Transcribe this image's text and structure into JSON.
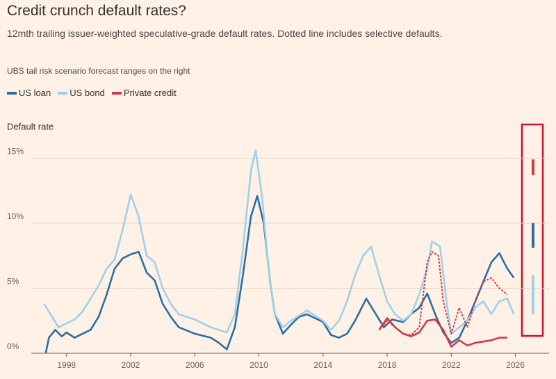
{
  "chart_data": {
    "type": "line",
    "title": "Credit crunch default rates?",
    "subtitle": "12mth trailing issuer-weighted speculative-grade default rates. Dotted line includes selective defaults.",
    "note": "UBS tail risk scenario forecast ranges on the right",
    "ylabel": "Default rate",
    "xlim": [
      1995.8,
      2028.1
    ],
    "xticks": [
      1998,
      2002,
      2006,
      2010,
      2014,
      2018,
      2022,
      2026
    ],
    "ylim": [
      0,
      17
    ],
    "yticks": [
      {
        "value": 0,
        "label": "0%"
      },
      {
        "value": 5,
        "label": "5%"
      },
      {
        "value": 10,
        "label": "10%"
      },
      {
        "value": 15,
        "label": "15%"
      }
    ],
    "grid": true,
    "series": [
      {
        "name": "US loan",
        "color": "#2a6ea6",
        "x": [
          1996.7,
          1996.9,
          1997.3,
          1997.7,
          1998,
          1998.5,
          1999,
          1999.5,
          2000,
          2000.5,
          2001,
          2001.5,
          2002,
          2002.5,
          2003,
          2003.5,
          2004,
          2004.5,
          2005,
          2006,
          2007,
          2007.5,
          2008,
          2008.5,
          2009,
          2009.5,
          2009.9,
          2010.3,
          2010.7,
          2011,
          2011.5,
          2012,
          2012.5,
          2013,
          2013.5,
          2014,
          2014.5,
          2015,
          2015.5,
          2016,
          2016.7,
          2017.3,
          2017.8,
          2018.3,
          2019,
          2019.5,
          2020,
          2020.5,
          2021,
          2021.5,
          2022,
          2022.5,
          2023,
          2023.5,
          2024,
          2024.5,
          2025,
          2025.5,
          2025.9
        ],
        "values": [
          0,
          1.2,
          1.8,
          1.3,
          1.6,
          1.2,
          1.5,
          1.8,
          2.8,
          4.5,
          6.5,
          7.3,
          7.6,
          7.8,
          6.2,
          5.6,
          3.8,
          2.8,
          2.0,
          1.5,
          1.2,
          0.8,
          0.3,
          2.0,
          6.0,
          10.5,
          12.1,
          10.0,
          5.5,
          3.0,
          1.5,
          2.2,
          2.8,
          3.0,
          2.7,
          2.4,
          1.4,
          1.2,
          1.5,
          2.5,
          4.2,
          3.0,
          2.0,
          2.6,
          2.4,
          3.0,
          3.5,
          4.6,
          3.0,
          1.6,
          0.8,
          1.2,
          2.5,
          4.0,
          5.5,
          7.0,
          7.7,
          6.5,
          5.8
        ],
        "forecast": [
          8.1,
          10.0
        ]
      },
      {
        "name": "US bond",
        "color": "#9fd0ea",
        "x": [
          1996.6,
          1997,
          1997.5,
          1998,
          1998.5,
          1999,
          1999.5,
          2000,
          2000.5,
          2001,
          2001.5,
          2002,
          2002.5,
          2003,
          2003.5,
          2004,
          2004.5,
          2005,
          2006,
          2007,
          2008,
          2008.5,
          2009,
          2009.5,
          2009.8,
          2010.2,
          2010.6,
          2011,
          2011.5,
          2012,
          2013,
          2014,
          2014.5,
          2015,
          2015.5,
          2016,
          2016.5,
          2017,
          2017.5,
          2018,
          2018.5,
          2019,
          2019.5,
          2020,
          2020.5,
          2020.8,
          2021.3,
          2021.7,
          2022,
          2022.5,
          2023,
          2023.5,
          2024,
          2024.5,
          2025,
          2025.5,
          2025.9
        ],
        "values": [
          3.8,
          3.0,
          2.0,
          2.3,
          2.6,
          3.2,
          4.2,
          5.2,
          6.5,
          7.2,
          9.5,
          12.2,
          10.5,
          7.5,
          7.0,
          5.0,
          3.8,
          3.0,
          2.6,
          2.0,
          1.6,
          3.0,
          8.0,
          14.0,
          15.6,
          12.0,
          6.5,
          3.0,
          2.0,
          2.5,
          3.3,
          2.5,
          1.8,
          2.5,
          4.0,
          6.0,
          7.5,
          8.2,
          6.0,
          4.0,
          3.0,
          2.5,
          3.0,
          4.5,
          6.5,
          8.6,
          8.2,
          4.0,
          1.5,
          2.0,
          2.5,
          3.5,
          4.0,
          3.0,
          4.0,
          4.2,
          3.0
        ],
        "forecast": [
          3.0,
          6.0
        ]
      },
      {
        "name": "Private credit",
        "color": "#cc3a4b",
        "x": [
          2017.5,
          2018,
          2018.5,
          2019,
          2019.5,
          2020,
          2020.5,
          2021,
          2021.5,
          2022,
          2022.5,
          2023,
          2023.5,
          2024,
          2024.5,
          2025,
          2025.5
        ],
        "values": [
          1.8,
          2.7,
          2.0,
          1.5,
          1.3,
          1.6,
          2.5,
          2.6,
          1.8,
          0.5,
          1.0,
          0.6,
          0.8,
          0.9,
          1.0,
          1.2,
          1.2
        ],
        "forecast": [
          13.7,
          14.9
        ]
      },
      {
        "color": "#cc3a4b",
        "dashed": true,
        "x": [
          2017.5,
          2018,
          2018.5,
          2019,
          2019.5,
          2020,
          2020.5,
          2020.8,
          2021.2,
          2021.5,
          2022,
          2022.5,
          2023,
          2023.5,
          2024,
          2024.5,
          2025,
          2025.5
        ],
        "values": [
          1.8,
          2.5,
          2.0,
          1.5,
          1.4,
          2.0,
          7.0,
          7.8,
          7.5,
          4.0,
          1.5,
          3.5,
          2.0,
          4.0,
          5.5,
          5.8,
          5.0,
          4.5
        ]
      }
    ]
  }
}
